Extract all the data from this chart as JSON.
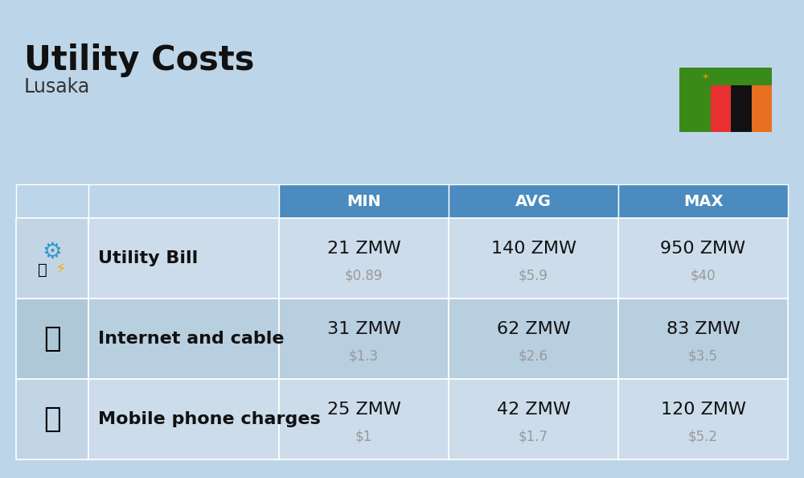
{
  "title": "Utility Costs",
  "subtitle": "Lusaka",
  "background_color": "#bdd5e8",
  "header_bg_color": "#4b8bbf",
  "header_text_color": "#ffffff",
  "row_bg_color_odd": "#ccdcea",
  "row_bg_color_even": "#b8cfe0",
  "icon_col_bg_odd": "#c2d5e5",
  "icon_col_bg_even": "#aec8d8",
  "cell_text_color": "#111111",
  "usd_text_color": "#999999",
  "columns": [
    "",
    "",
    "MIN",
    "AVG",
    "MAX"
  ],
  "rows": [
    {
      "label": "Utility Bill",
      "min_zmw": "21 ZMW",
      "min_usd": "$0.89",
      "avg_zmw": "140 ZMW",
      "avg_usd": "$5.9",
      "max_zmw": "950 ZMW",
      "max_usd": "$40"
    },
    {
      "label": "Internet and cable",
      "min_zmw": "31 ZMW",
      "min_usd": "$1.3",
      "avg_zmw": "62 ZMW",
      "avg_usd": "$2.6",
      "max_zmw": "83 ZMW",
      "max_usd": "$3.5"
    },
    {
      "label": "Mobile phone charges",
      "min_zmw": "25 ZMW",
      "min_usd": "$1",
      "avg_zmw": "42 ZMW",
      "avg_usd": "$1.7",
      "max_zmw": "120 ZMW",
      "max_usd": "$5.2"
    }
  ],
  "title_fontsize": 30,
  "subtitle_fontsize": 17,
  "header_fontsize": 14,
  "cell_fontsize": 16,
  "label_fontsize": 16,
  "usd_fontsize": 12
}
